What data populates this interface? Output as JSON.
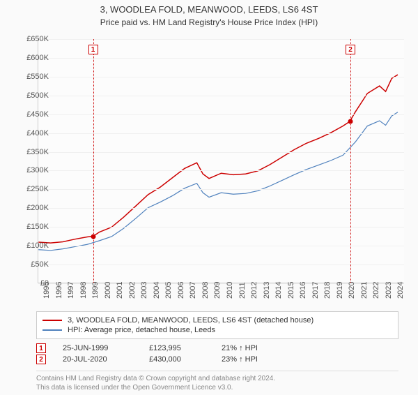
{
  "title": "3, WOODLEA FOLD, MEANWOOD, LEEDS, LS6 4ST",
  "subtitle": "Price paid vs. HM Land Registry's House Price Index (HPI)",
  "chart": {
    "type": "line",
    "background_color": "#fcfcfc",
    "grid_color": "#f0f0f0",
    "text_color": "#555555",
    "ylim": [
      0,
      650000
    ],
    "ytick_step": 50000,
    "ylabel_prefix": "£",
    "ylabel_suffix": "K",
    "y_ticks": [
      "£0",
      "£50K",
      "£100K",
      "£150K",
      "£200K",
      "£250K",
      "£300K",
      "£350K",
      "£400K",
      "£450K",
      "£500K",
      "£550K",
      "£600K",
      "£650K"
    ],
    "x_years": [
      1995,
      1996,
      1997,
      1998,
      1999,
      2000,
      2001,
      2002,
      2003,
      2004,
      2005,
      2006,
      2007,
      2008,
      2009,
      2010,
      2011,
      2012,
      2013,
      2014,
      2015,
      2016,
      2017,
      2018,
      2019,
      2020,
      2021,
      2022,
      2023,
      2024
    ],
    "label_fontsize": 11,
    "title_fontsize": 13,
    "series": [
      {
        "name": "3, WOODLEA FOLD, MEANWOOD, LEEDS, LS6 4ST (detached house)",
        "color": "#cc0000",
        "line_width": 1.5,
        "values": [
          [
            1995,
            108000
          ],
          [
            1996,
            106000
          ],
          [
            1997,
            109000
          ],
          [
            1998,
            116000
          ],
          [
            1999,
            122000
          ],
          [
            1999.5,
            123995
          ],
          [
            2000,
            135000
          ],
          [
            2001,
            148000
          ],
          [
            2002,
            175000
          ],
          [
            2003,
            205000
          ],
          [
            2004,
            235000
          ],
          [
            2005,
            255000
          ],
          [
            2006,
            280000
          ],
          [
            2007,
            305000
          ],
          [
            2008,
            320000
          ],
          [
            2008.5,
            290000
          ],
          [
            2009,
            278000
          ],
          [
            2010,
            292000
          ],
          [
            2011,
            288000
          ],
          [
            2012,
            290000
          ],
          [
            2013,
            298000
          ],
          [
            2014,
            315000
          ],
          [
            2015,
            335000
          ],
          [
            2016,
            355000
          ],
          [
            2017,
            372000
          ],
          [
            2018,
            385000
          ],
          [
            2019,
            400000
          ],
          [
            2020,
            418000
          ],
          [
            2020.55,
            430000
          ],
          [
            2021,
            455000
          ],
          [
            2022,
            505000
          ],
          [
            2023,
            525000
          ],
          [
            2023.5,
            510000
          ],
          [
            2024,
            545000
          ],
          [
            2024.5,
            555000
          ]
        ]
      },
      {
        "name": "HPI: Average price, detached house, Leeds",
        "color": "#4f81bd",
        "line_width": 1.2,
        "values": [
          [
            1995,
            88000
          ],
          [
            1996,
            86000
          ],
          [
            1997,
            90000
          ],
          [
            1998,
            96000
          ],
          [
            1999,
            102000
          ],
          [
            2000,
            112000
          ],
          [
            2001,
            123000
          ],
          [
            2002,
            145000
          ],
          [
            2003,
            172000
          ],
          [
            2004,
            200000
          ],
          [
            2005,
            215000
          ],
          [
            2006,
            232000
          ],
          [
            2007,
            252000
          ],
          [
            2008,
            265000
          ],
          [
            2008.5,
            240000
          ],
          [
            2009,
            228000
          ],
          [
            2010,
            240000
          ],
          [
            2011,
            236000
          ],
          [
            2012,
            238000
          ],
          [
            2013,
            245000
          ],
          [
            2014,
            258000
          ],
          [
            2015,
            273000
          ],
          [
            2016,
            288000
          ],
          [
            2017,
            302000
          ],
          [
            2018,
            314000
          ],
          [
            2019,
            326000
          ],
          [
            2020,
            340000
          ],
          [
            2021,
            375000
          ],
          [
            2022,
            418000
          ],
          [
            2023,
            432000
          ],
          [
            2023.5,
            420000
          ],
          [
            2024,
            445000
          ],
          [
            2024.5,
            455000
          ]
        ]
      }
    ],
    "sale_markers": [
      {
        "n": "1",
        "year": 1999.48,
        "price": 123995,
        "color": "#cc0000"
      },
      {
        "n": "2",
        "year": 2020.55,
        "price": 430000,
        "color": "#cc0000"
      }
    ]
  },
  "legend": {
    "series": [
      {
        "label": "3, WOODLEA FOLD, MEANWOOD, LEEDS, LS6 4ST (detached house)",
        "color": "#cc0000"
      },
      {
        "label": "HPI: Average price, detached house, Leeds",
        "color": "#4f81bd"
      }
    ]
  },
  "sales": [
    {
      "n": "1",
      "date": "25-JUN-1999",
      "price": "£123,995",
      "delta": "21% ↑ HPI",
      "color": "#cc0000"
    },
    {
      "n": "2",
      "date": "20-JUL-2020",
      "price": "£430,000",
      "delta": "23% ↑ HPI",
      "color": "#cc0000"
    }
  ],
  "footer": {
    "line1": "Contains HM Land Registry data © Crown copyright and database right 2024.",
    "line2": "This data is licensed under the Open Government Licence v3.0."
  }
}
